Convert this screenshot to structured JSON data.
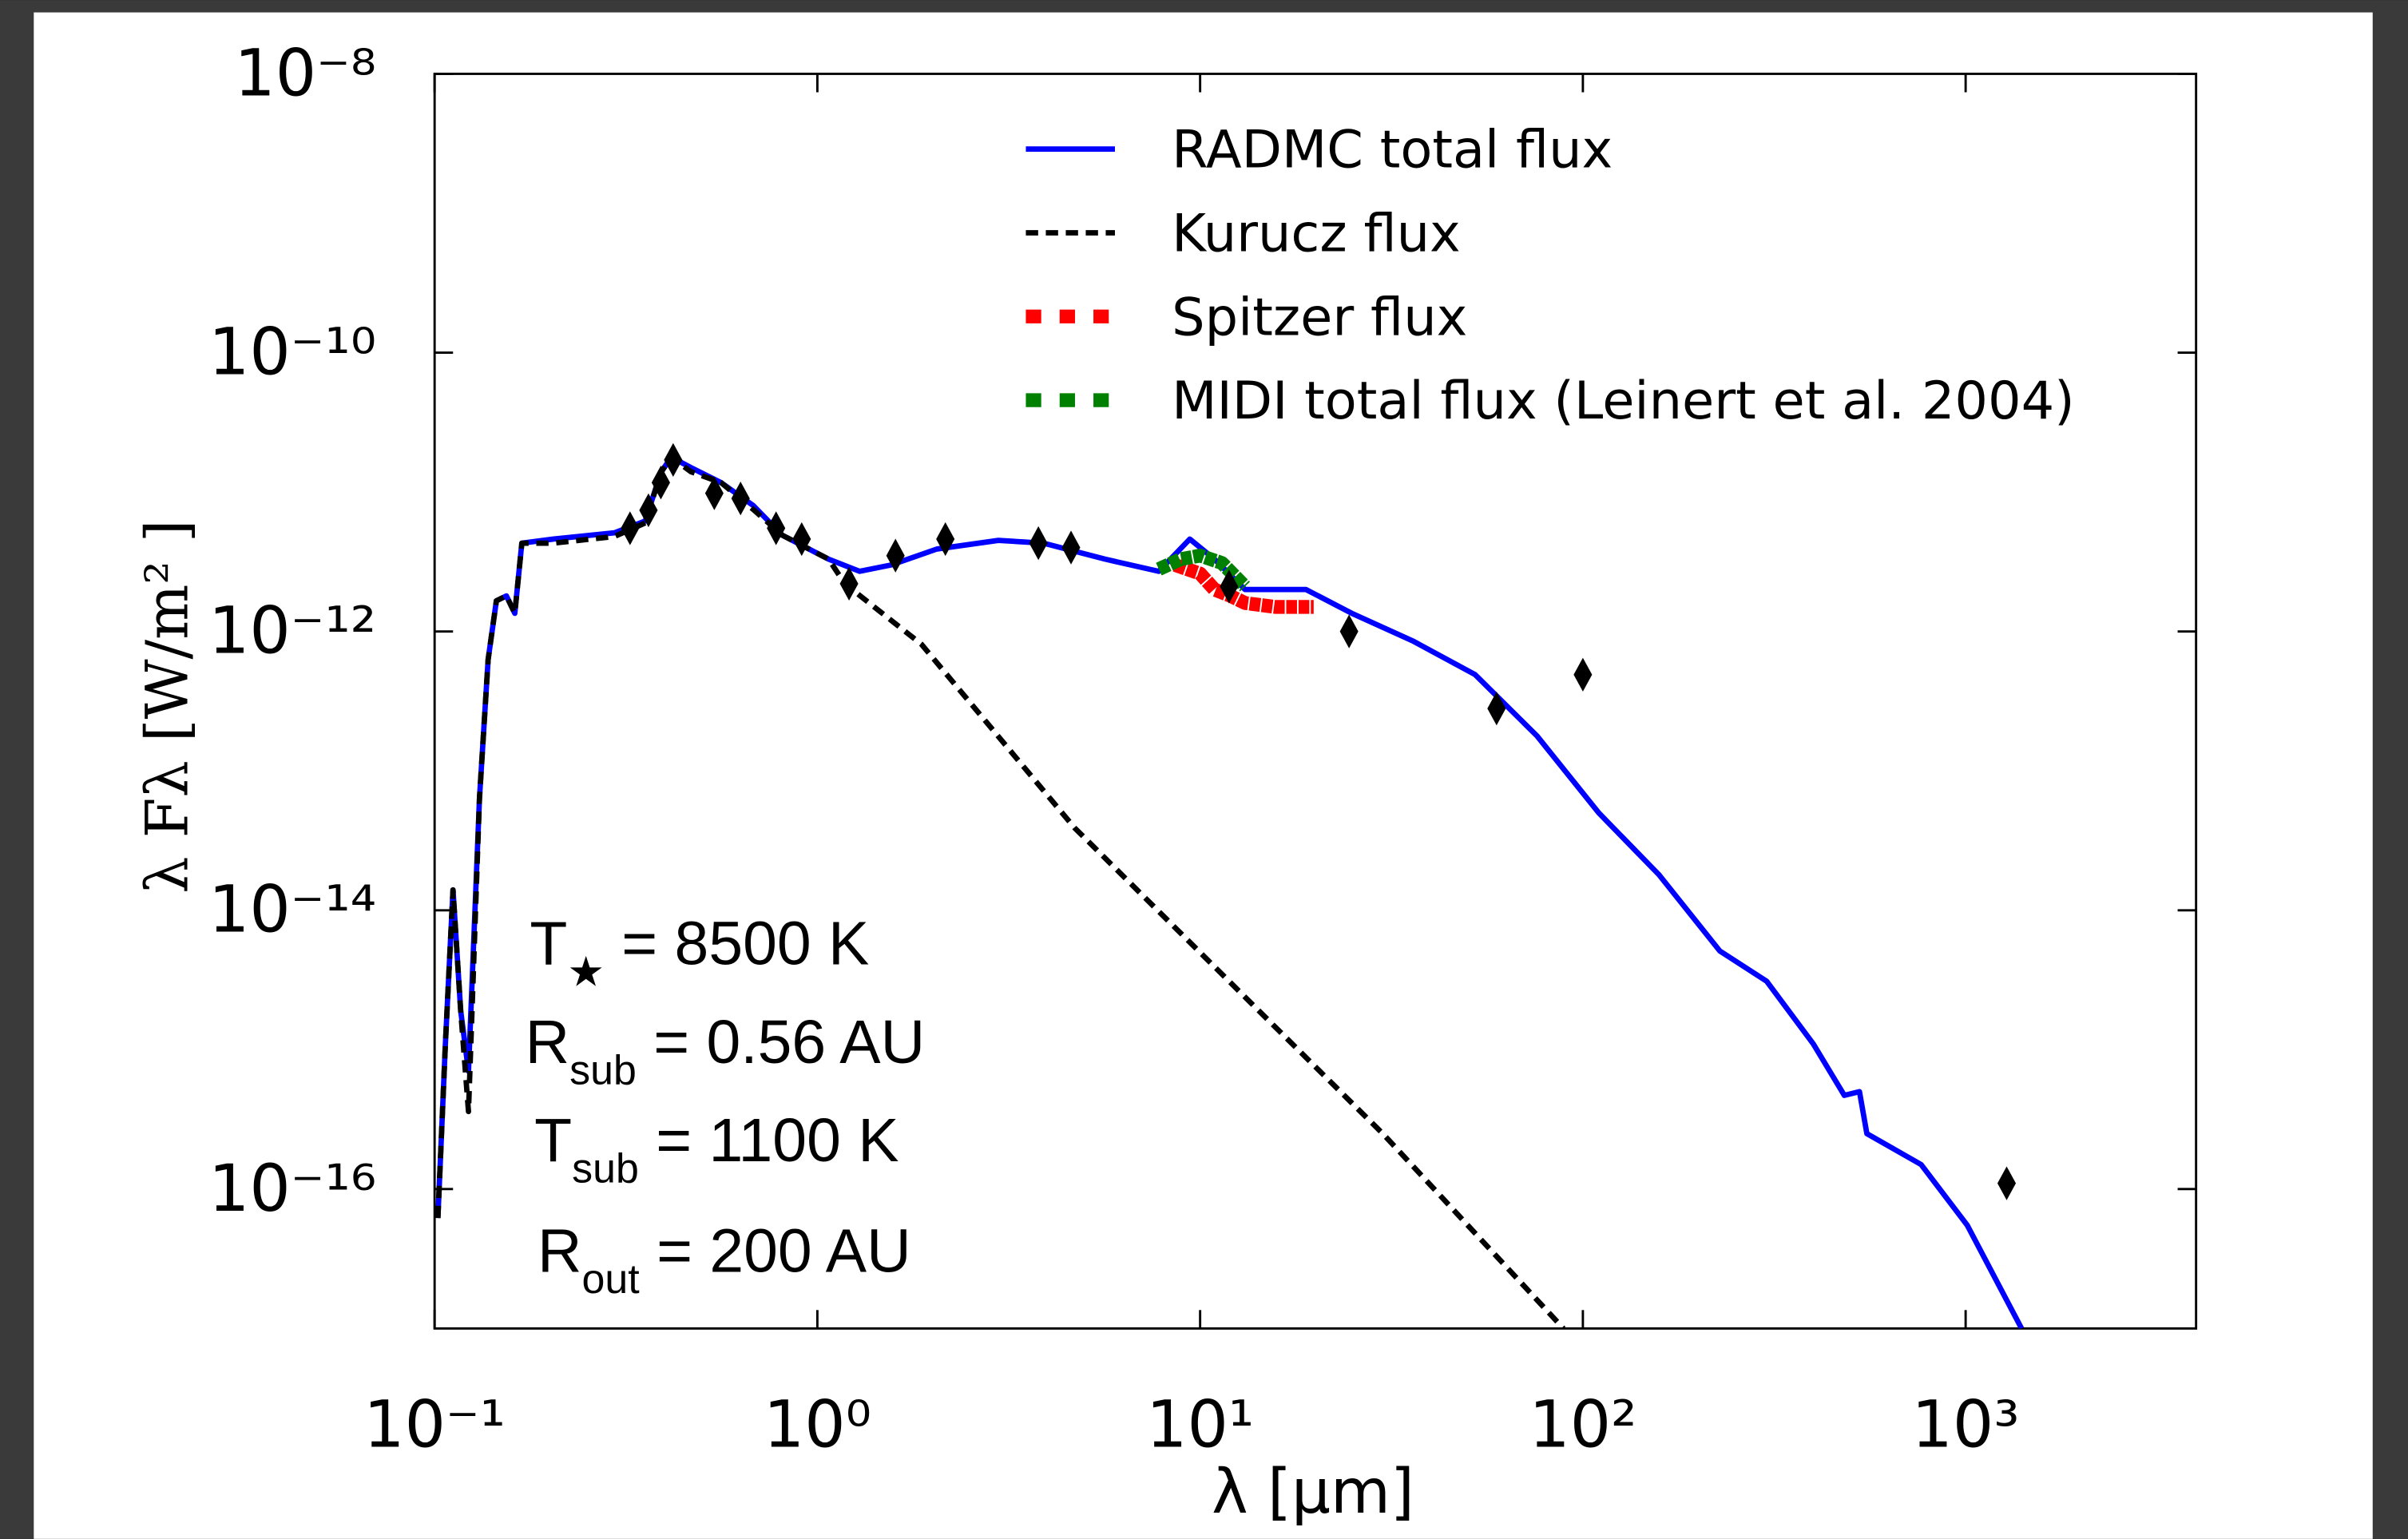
{
  "chart_data": {
    "type": "line",
    "xlabel": "λ [μm]",
    "ylabel": "λ Fλ [W/m² ]",
    "xscale": "log",
    "yscale": "log",
    "xlim": [
      0.1,
      4000
    ],
    "ylim": [
      1e-17,
      1e-08
    ],
    "xticks": [
      {
        "value": 0.1,
        "label": "10⁻¹"
      },
      {
        "value": 1,
        "label": "10⁰"
      },
      {
        "value": 10,
        "label": "10¹"
      },
      {
        "value": 100,
        "label": "10²"
      },
      {
        "value": 1000,
        "label": "10³"
      }
    ],
    "yticks": [
      {
        "value": 1e-08,
        "label": "10⁻⁸"
      },
      {
        "value": 1e-10,
        "label": "10⁻¹⁰"
      },
      {
        "value": 1e-12,
        "label": "10⁻¹²"
      },
      {
        "value": 1e-14,
        "label": "10⁻¹⁴"
      },
      {
        "value": 1e-16,
        "label": "10⁻¹⁶"
      }
    ],
    "legend": "top right",
    "series": [
      {
        "name": "RADMC total flux",
        "color": "#0000ff",
        "style": "solid",
        "x": [
          0.102,
          0.1067,
          0.1117,
          0.117,
          0.1226,
          0.131,
          0.138,
          0.145,
          0.154,
          0.162,
          0.169,
          0.204,
          0.295,
          0.355,
          0.39,
          0.415,
          0.467,
          0.56,
          0.68,
          0.81,
          1.07,
          1.29,
          1.56,
          2.05,
          2.97,
          3.9,
          5.65,
          7.8,
          9.4,
          10.9,
          13.1,
          15.7,
          18.9,
          24.9,
          36.1,
          52.3,
          75.9,
          110,
          158,
          228,
          302,
          400,
          482,
          528,
          552,
          765,
          1010,
          1400
        ],
        "values": [
          6.2e-17,
          1.1e-15,
          1.4e-14,
          1.9e-15,
          7e-16,
          6.4e-14,
          6.3e-13,
          1.66e-12,
          1.8e-12,
          1.35e-12,
          4.3e-12,
          4.6e-12,
          5.1e-12,
          6.2e-12,
          1.38e-11,
          1.78e-11,
          1.5e-11,
          1.17e-11,
          8e-12,
          4.9e-12,
          3.3e-12,
          2.7e-12,
          3e-12,
          3.9e-12,
          4.5e-12,
          4.3e-12,
          3.3e-12,
          2.7e-12,
          4.6e-12,
          3.3e-12,
          2e-12,
          2e-12,
          2e-12,
          1.35e-12,
          8.5e-13,
          4.9e-13,
          1.78e-13,
          5e-14,
          1.8e-14,
          5.1e-15,
          3.1e-15,
          1.1e-15,
          4.7e-16,
          5e-16,
          2.5e-16,
          1.5e-16,
          5.5e-17,
          1e-17
        ]
      },
      {
        "name": "Kurucz flux",
        "color": "#000000",
        "style": "dashed",
        "x": [
          0.102,
          0.1067,
          0.1117,
          0.117,
          0.1226,
          0.131,
          0.138,
          0.145,
          0.154,
          0.162,
          0.169,
          0.204,
          0.295,
          0.355,
          0.39,
          0.415,
          0.467,
          0.56,
          0.68,
          0.81,
          1.07,
          1.18,
          1.87,
          4.7,
          11.9,
          30,
          89
        ],
        "values": [
          6.2e-17,
          1.1e-15,
          1.4e-14,
          1.9e-15,
          3.6e-16,
          6.4e-14,
          6.3e-13,
          1.66e-12,
          1.8e-12,
          1.35e-12,
          4.3e-12,
          4.3e-12,
          4.8e-12,
          6e-12,
          1.38e-11,
          1.78e-11,
          1.4e-11,
          1.17e-11,
          7.5e-12,
          4.9e-12,
          3.3e-12,
          2.2e-12,
          8.1e-13,
          3.9e-14,
          3.1e-15,
          2.5e-16,
          1e-17
        ]
      },
      {
        "name": "Spitzer flux",
        "color": "#ff0000",
        "style": "squares",
        "x": [
          8.6,
          10.0,
          10.9,
          12,
          13.1,
          15.7,
          19.8
        ],
        "values": [
          3e-12,
          2.6e-12,
          2e-12,
          1.8e-12,
          1.6e-12,
          1.5e-12,
          1.5e-12
        ]
      },
      {
        "name": "MIDI total flux (Leinert et al. 2004)",
        "color": "#008000",
        "style": "squares",
        "x": [
          7.8,
          8.9,
          10,
          11.4,
          13.1
        ],
        "values": [
          2.8e-12,
          3.3e-12,
          3.5e-12,
          3.1e-12,
          2.1e-12
        ]
      },
      {
        "color": "#000000",
        "style": "diamond",
        "x": [
          0.324,
          0.362,
          0.39,
          0.42,
          0.538,
          0.63,
          0.78,
          0.91,
          1.21,
          1.6,
          2.16,
          3.78,
          4.6,
          11.9,
          24.5,
          59.5,
          100,
          1280
        ],
        "values": [
          5.5e-12,
          7.4e-12,
          1.17e-11,
          1.7e-11,
          9.8e-12,
          9e-12,
          5.5e-12,
          4.6e-12,
          2.2e-12,
          3.5e-12,
          4.6e-12,
          4.3e-12,
          4e-12,
          2.1e-12,
          1e-12,
          2.8e-13,
          4.9e-13,
          1.1e-16
        ]
      }
    ],
    "annotations": [
      {
        "symbol": "T",
        "sub": "★",
        "text": "  = 8500 K"
      },
      {
        "symbol": "R",
        "sub": "sub",
        "text": " =  0.56 AU"
      },
      {
        "symbol": "T",
        "sub": "sub",
        "text": " = 1100 K"
      },
      {
        "symbol": "R",
        "sub": "out",
        "text": " =   200 AU"
      }
    ]
  }
}
